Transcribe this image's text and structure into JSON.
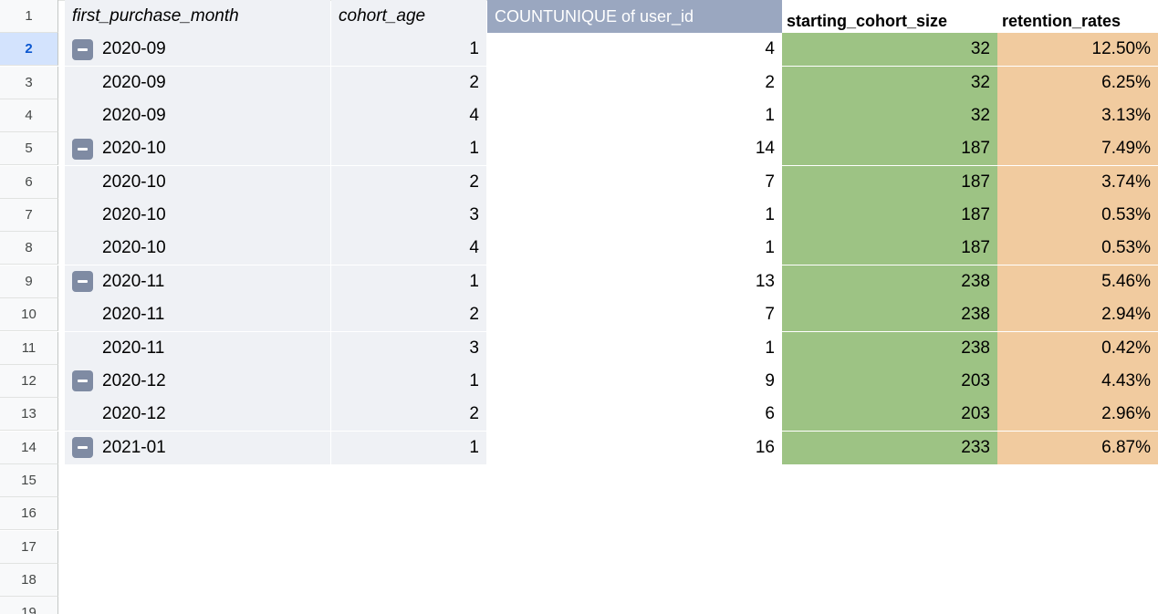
{
  "headers": {
    "first_purchase_month": "first_purchase_month",
    "cohort_age": "cohort_age",
    "count_unique": "COUNTUNIQUE of user_id",
    "starting_cohort_size": "starting_cohort_size",
    "retention_rates": "retention_rates"
  },
  "row_numbers": [
    "1",
    "2",
    "3",
    "4",
    "5",
    "6",
    "7",
    "8",
    "9",
    "10",
    "11",
    "12",
    "13",
    "14",
    "15",
    "16",
    "17",
    "18",
    "19"
  ],
  "rows": [
    {
      "month": "2020-09",
      "age": "1",
      "count": "4",
      "size": "32",
      "rate": "12.50%",
      "group_start": true
    },
    {
      "month": "2020-09",
      "age": "2",
      "count": "2",
      "size": "32",
      "rate": "6.25%",
      "group_start": false
    },
    {
      "month": "2020-09",
      "age": "4",
      "count": "1",
      "size": "32",
      "rate": "3.13%",
      "group_start": false
    },
    {
      "month": "2020-10",
      "age": "1",
      "count": "14",
      "size": "187",
      "rate": "7.49%",
      "group_start": true
    },
    {
      "month": "2020-10",
      "age": "2",
      "count": "7",
      "size": "187",
      "rate": "3.74%",
      "group_start": false
    },
    {
      "month": "2020-10",
      "age": "3",
      "count": "1",
      "size": "187",
      "rate": "0.53%",
      "group_start": false
    },
    {
      "month": "2020-10",
      "age": "4",
      "count": "1",
      "size": "187",
      "rate": "0.53%",
      "group_start": false
    },
    {
      "month": "2020-11",
      "age": "1",
      "count": "13",
      "size": "238",
      "rate": "5.46%",
      "group_start": true
    },
    {
      "month": "2020-11",
      "age": "2",
      "count": "7",
      "size": "238",
      "rate": "2.94%",
      "group_start": false
    },
    {
      "month": "2020-11",
      "age": "3",
      "count": "1",
      "size": "238",
      "rate": "0.42%",
      "group_start": false
    },
    {
      "month": "2020-12",
      "age": "1",
      "count": "9",
      "size": "203",
      "rate": "4.43%",
      "group_start": true
    },
    {
      "month": "2020-12",
      "age": "2",
      "count": "6",
      "size": "203",
      "rate": "2.96%",
      "group_start": false
    },
    {
      "month": "2021-01",
      "age": "1",
      "count": "16",
      "size": "233",
      "rate": "6.87%",
      "group_start": true
    }
  ],
  "selected_row": "2",
  "colors": {
    "pivot_bg": "#eff1f5",
    "count_header_bg": "#9aa7c0",
    "starting_size_bg": "#9dc384",
    "retention_bg": "#f1cb9f",
    "collapse_button": "#7f8ba3"
  }
}
